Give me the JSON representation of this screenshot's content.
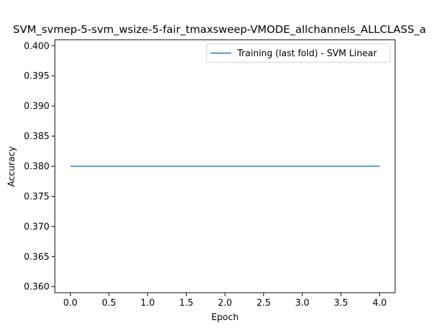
{
  "chart_data": {
    "type": "line",
    "title": "SVM_svmep-5-svm_wsize-5-fair_tmaxsweep-VMODE_allchannels_ALLCLASS_a",
    "xlabel": "Epoch",
    "ylabel": "Accuracy",
    "xlim": [
      -0.2,
      4.2
    ],
    "ylim": [
      0.359,
      0.401
    ],
    "xticks": [
      0.0,
      0.5,
      1.0,
      1.5,
      2.0,
      2.5,
      3.0,
      3.5,
      4.0
    ],
    "xtick_labels": [
      "0.0",
      "0.5",
      "1.0",
      "1.5",
      "2.0",
      "2.5",
      "3.0",
      "3.5",
      "4.0"
    ],
    "yticks": [
      0.36,
      0.365,
      0.37,
      0.375,
      0.38,
      0.385,
      0.39,
      0.395,
      0.4
    ],
    "ytick_labels": [
      "0.360",
      "0.365",
      "0.370",
      "0.375",
      "0.380",
      "0.385",
      "0.390",
      "0.395",
      "0.400"
    ],
    "grid": false,
    "legend_position": "upper right",
    "series": [
      {
        "name": "Training (last fold) - SVM Linear",
        "color": "#1f77b4",
        "x": [
          0,
          1,
          2,
          3,
          4
        ],
        "y": [
          0.38,
          0.38,
          0.38,
          0.38,
          0.38
        ]
      }
    ]
  }
}
